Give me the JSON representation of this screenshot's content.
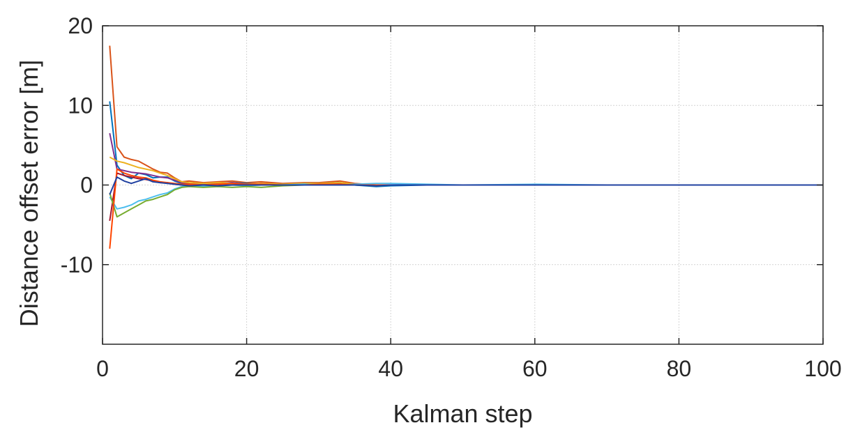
{
  "chart_data": {
    "type": "line",
    "title": "",
    "xlabel": "Kalman step",
    "ylabel": "Distance offset error [m]",
    "xlim": [
      0,
      100
    ],
    "ylim": [
      -20,
      20
    ],
    "xticks": [
      0,
      20,
      40,
      60,
      80,
      100
    ],
    "xtick_labels": [
      "0",
      "20",
      "40",
      "60",
      "80",
      "100"
    ],
    "yticks": [
      -10,
      0,
      10,
      20
    ],
    "ytick_labels": [
      "-10",
      "0",
      "10",
      "20"
    ],
    "grid": true,
    "series": [
      {
        "color": "#D95319",
        "x": [
          1,
          2,
          3,
          4,
          5,
          6,
          7,
          8,
          9,
          10,
          11,
          12,
          14,
          16,
          18,
          20,
          22,
          25,
          28,
          30,
          33,
          35,
          38,
          40,
          45,
          50,
          60,
          70,
          80,
          90,
          100
        ],
        "y": [
          17.5,
          4.8,
          3.5,
          3.2,
          3.0,
          2.5,
          2.0,
          1.6,
          1.5,
          0.9,
          0.4,
          0.5,
          0.3,
          0.4,
          0.5,
          0.3,
          0.4,
          0.2,
          0.3,
          0.3,
          0.5,
          0.2,
          0.0,
          0.0,
          0.0,
          0.0,
          0.0,
          0.0,
          0.0,
          0.0,
          0.0
        ]
      },
      {
        "color": "#0072BD",
        "x": [
          1,
          2,
          3,
          4,
          5,
          6,
          7,
          8,
          9,
          10,
          11,
          12,
          14,
          16,
          18,
          20,
          22,
          25,
          28,
          30,
          33,
          35,
          38,
          40,
          45,
          50,
          60,
          70,
          80,
          90,
          100
        ],
        "y": [
          10.5,
          2.5,
          1.2,
          0.8,
          1.5,
          1.3,
          0.9,
          1.0,
          1.0,
          0.5,
          0.2,
          0.2,
          0.1,
          0.2,
          0.3,
          0.2,
          0.1,
          0.1,
          0.2,
          0.2,
          0.3,
          0.0,
          -0.2,
          -0.1,
          0.0,
          0.0,
          0.0,
          0.0,
          0.0,
          0.0,
          0.0
        ]
      },
      {
        "color": "#7E2F8E",
        "x": [
          1,
          2,
          3,
          4,
          5,
          6,
          7,
          8,
          9,
          10,
          11,
          12,
          14,
          16,
          18,
          20,
          22,
          25,
          28,
          30,
          33,
          35,
          38,
          40,
          45,
          50,
          60,
          70,
          80,
          90,
          100
        ],
        "y": [
          6.5,
          2.0,
          1.8,
          1.6,
          1.5,
          1.4,
          1.2,
          1.0,
          0.9,
          0.6,
          0.3,
          0.2,
          0.1,
          0.2,
          0.3,
          0.1,
          0.2,
          0.1,
          0.0,
          0.1,
          0.1,
          0.0,
          0.0,
          0.0,
          0.0,
          0.0,
          0.0,
          0.0,
          0.0,
          0.0,
          0.0
        ]
      },
      {
        "color": "#A2142F",
        "x": [
          1,
          2,
          3,
          4,
          5,
          6,
          7,
          8,
          9,
          10,
          11,
          12,
          14,
          16,
          18,
          20,
          22,
          25,
          28,
          30,
          33,
          35,
          38,
          40,
          45,
          50,
          60,
          70,
          80,
          90,
          100
        ],
        "y": [
          -4.5,
          1.5,
          1.2,
          1.0,
          0.8,
          0.7,
          0.5,
          0.3,
          0.3,
          0.1,
          0.0,
          0.1,
          0.0,
          0.1,
          0.0,
          0.1,
          0.1,
          0.0,
          0.1,
          0.1,
          0.2,
          0.0,
          0.0,
          0.0,
          0.0,
          0.0,
          0.0,
          0.0,
          0.0,
          0.0,
          0.0
        ]
      },
      {
        "color": "#EDB120",
        "x": [
          1,
          2,
          3,
          4,
          5,
          6,
          7,
          8,
          9,
          10,
          11,
          12,
          14,
          16,
          18,
          20,
          22,
          25,
          28,
          30,
          33,
          35,
          38,
          40,
          45,
          50,
          60,
          70,
          80,
          90,
          100
        ],
        "y": [
          3.5,
          3.0,
          2.8,
          2.5,
          2.2,
          2.0,
          1.8,
          1.5,
          1.2,
          0.8,
          0.4,
          0.3,
          0.2,
          0.3,
          0.2,
          0.1,
          0.2,
          0.1,
          0.2,
          0.2,
          0.3,
          0.1,
          0.0,
          0.0,
          0.0,
          0.0,
          0.0,
          0.0,
          0.0,
          0.0,
          0.0
        ]
      },
      {
        "color": "#4DBEEE",
        "x": [
          1,
          2,
          3,
          4,
          5,
          6,
          7,
          8,
          9,
          10,
          11,
          12,
          14,
          16,
          18,
          20,
          22,
          25,
          28,
          30,
          33,
          35,
          38,
          40,
          45,
          50,
          60,
          70,
          80,
          90,
          100
        ],
        "y": [
          -1.5,
          -3.0,
          -2.8,
          -2.5,
          -2.0,
          -1.8,
          -1.5,
          -1.2,
          -1.0,
          -0.5,
          -0.2,
          -0.1,
          -0.2,
          -0.1,
          0.0,
          -0.1,
          0.0,
          0.0,
          0.1,
          0.0,
          0.0,
          0.1,
          0.2,
          0.2,
          0.1,
          0.0,
          0.1,
          0.0,
          0.0,
          0.0,
          0.0
        ]
      },
      {
        "color": "#77AC30",
        "x": [
          1,
          2,
          3,
          4,
          5,
          6,
          7,
          8,
          9,
          10,
          11,
          12,
          14,
          16,
          18,
          20,
          22,
          25,
          28,
          30,
          33,
          35,
          38,
          40,
          45,
          50,
          60,
          70,
          80,
          90,
          100
        ],
        "y": [
          -1.0,
          -4.0,
          -3.5,
          -3.0,
          -2.5,
          -2.0,
          -1.8,
          -1.5,
          -1.2,
          -0.6,
          -0.3,
          -0.2,
          -0.3,
          -0.2,
          -0.3,
          -0.2,
          -0.3,
          -0.1,
          0.0,
          0.0,
          0.1,
          0.0,
          -0.1,
          0.0,
          0.0,
          0.0,
          0.0,
          0.0,
          0.0,
          0.0,
          0.0
        ]
      },
      {
        "color": "#FF4500",
        "x": [
          1,
          2,
          3,
          4,
          5,
          6,
          7,
          8,
          9,
          10,
          11,
          12,
          14,
          16,
          18,
          20,
          22,
          25,
          28,
          30,
          33,
          35,
          38,
          40,
          45,
          50,
          60,
          70,
          80,
          90,
          100
        ],
        "y": [
          -8.0,
          2.0,
          1.5,
          1.2,
          1.0,
          0.9,
          0.6,
          0.4,
          0.3,
          0.2,
          0.1,
          0.1,
          0.0,
          0.1,
          0.2,
          0.1,
          0.1,
          0.0,
          0.0,
          0.1,
          0.1,
          0.0,
          0.0,
          0.0,
          0.0,
          0.0,
          0.0,
          0.0,
          0.0,
          0.0,
          0.0
        ]
      },
      {
        "color": "#2040A0",
        "x": [
          1,
          2,
          3,
          4,
          5,
          6,
          7,
          8,
          9,
          10,
          11,
          12,
          14,
          16,
          18,
          20,
          22,
          25,
          28,
          30,
          33,
          35,
          38,
          40,
          45,
          50,
          60,
          70,
          80,
          90,
          100
        ],
        "y": [
          -1.2,
          1.0,
          0.5,
          0.2,
          0.5,
          0.8,
          0.4,
          0.3,
          0.2,
          0.1,
          0.0,
          -0.1,
          0.0,
          -0.1,
          0.0,
          0.0,
          0.0,
          0.0,
          0.0,
          0.0,
          0.0,
          0.0,
          -0.1,
          0.0,
          0.0,
          0.0,
          0.0,
          0.0,
          0.0,
          0.0,
          0.0
        ]
      }
    ]
  }
}
